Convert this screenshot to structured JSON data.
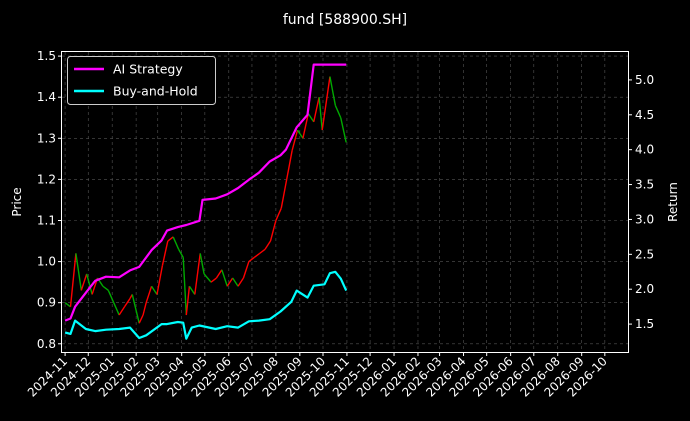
{
  "chart_data": {
    "type": "line",
    "title": "fund [588900.SH]",
    "ylabel_left": "Price",
    "ylabel_right": "Return",
    "ylim_left": [
      0.78,
      1.51
    ],
    "ylim_right": [
      1.1,
      5.4
    ],
    "yticks_left": [
      "0.8",
      "0.9",
      "1.0",
      "1.1",
      "1.2",
      "1.3",
      "1.4",
      "1.5"
    ],
    "yticks_right": [
      "1.5",
      "2.0",
      "2.5",
      "3.0",
      "3.5",
      "4.0",
      "4.5",
      "5.0"
    ],
    "x_ticks": [
      "2024-11",
      "2024-12",
      "2025-01",
      "2025-02",
      "2025-03",
      "2025-04",
      "2025-05",
      "2025-06",
      "2025-07",
      "2025-08",
      "2025-09",
      "2025-10",
      "2025-11",
      "2025-12",
      "2026-01",
      "2026-02",
      "2026-03",
      "2026-04",
      "2026-05",
      "2026-06",
      "2026-07",
      "2026-08",
      "2026-09",
      "2026-10"
    ],
    "xlim": [
      "2024-10-28",
      "2026-10-31"
    ],
    "grid": true,
    "legend_position": "top-left",
    "legend": [
      "AI Strategy",
      "Buy-and-Hold"
    ],
    "colors": {
      "background": "#000000",
      "ai": "#ff00ff",
      "bh": "#00ffff",
      "up": "#ff0000",
      "down": "#00aa00",
      "grid": "#555555"
    },
    "price_series": [
      [
        "2024-11-01",
        0.9
      ],
      [
        "2024-11-08",
        0.89
      ],
      [
        "2024-11-15",
        1.02
      ],
      [
        "2024-11-22",
        0.93
      ],
      [
        "2024-11-29",
        0.97
      ],
      [
        "2024-12-06",
        0.92
      ],
      [
        "2024-12-13",
        0.96
      ],
      [
        "2024-12-20",
        0.94
      ],
      [
        "2024-12-27",
        0.93
      ],
      [
        "2025-01-03",
        0.9
      ],
      [
        "2025-01-10",
        0.87
      ],
      [
        "2025-01-17",
        0.89
      ],
      [
        "2025-01-24",
        0.91
      ],
      [
        "2025-01-27",
        0.92
      ],
      [
        "2025-02-05",
        0.85
      ],
      [
        "2025-02-10",
        0.87
      ],
      [
        "2025-02-14",
        0.9
      ],
      [
        "2025-02-21",
        0.94
      ],
      [
        "2025-02-28",
        0.92
      ],
      [
        "2025-03-07",
        0.99
      ],
      [
        "2025-03-14",
        1.05
      ],
      [
        "2025-03-21",
        1.06
      ],
      [
        "2025-03-28",
        1.03
      ],
      [
        "2025-04-03",
        1.01
      ],
      [
        "2025-04-07",
        0.87
      ],
      [
        "2025-04-11",
        0.94
      ],
      [
        "2025-04-18",
        0.92
      ],
      [
        "2025-04-25",
        1.02
      ],
      [
        "2025-04-30",
        0.97
      ],
      [
        "2025-05-09",
        0.95
      ],
      [
        "2025-05-16",
        0.96
      ],
      [
        "2025-05-23",
        0.98
      ],
      [
        "2025-05-30",
        0.94
      ],
      [
        "2025-06-06",
        0.96
      ],
      [
        "2025-06-13",
        0.94
      ],
      [
        "2025-06-20",
        0.96
      ],
      [
        "2025-06-27",
        1.0
      ],
      [
        "2025-07-04",
        1.01
      ],
      [
        "2025-07-11",
        1.02
      ],
      [
        "2025-07-18",
        1.03
      ],
      [
        "2025-07-25",
        1.05
      ],
      [
        "2025-08-01",
        1.1
      ],
      [
        "2025-08-08",
        1.13
      ],
      [
        "2025-08-15",
        1.2
      ],
      [
        "2025-08-22",
        1.27
      ],
      [
        "2025-08-29",
        1.32
      ],
      [
        "2025-09-05",
        1.3
      ],
      [
        "2025-09-12",
        1.36
      ],
      [
        "2025-09-19",
        1.34
      ],
      [
        "2025-09-26",
        1.4
      ],
      [
        "2025-09-30",
        1.32
      ],
      [
        "2025-10-10",
        1.45
      ],
      [
        "2025-10-17",
        1.38
      ],
      [
        "2025-10-24",
        1.35
      ],
      [
        "2025-10-31",
        1.29
      ]
    ],
    "series": [
      {
        "name": "AI Strategy",
        "axis": "right",
        "points": [
          [
            "2024-11-01",
            1.55
          ],
          [
            "2024-11-08",
            1.58
          ],
          [
            "2024-11-14",
            1.75
          ],
          [
            "2024-11-28",
            1.95
          ],
          [
            "2024-12-10",
            2.12
          ],
          [
            "2024-12-24",
            2.18
          ],
          [
            "2025-01-10",
            2.17
          ],
          [
            "2025-01-24",
            2.27
          ],
          [
            "2025-02-05",
            2.32
          ],
          [
            "2025-02-21",
            2.56
          ],
          [
            "2025-03-06",
            2.7
          ],
          [
            "2025-03-13",
            2.84
          ],
          [
            "2025-03-27",
            2.89
          ],
          [
            "2025-04-07",
            2.92
          ],
          [
            "2025-04-24",
            2.98
          ],
          [
            "2025-04-28",
            3.28
          ],
          [
            "2025-05-15",
            3.3
          ],
          [
            "2025-05-30",
            3.36
          ],
          [
            "2025-06-13",
            3.45
          ],
          [
            "2025-06-27",
            3.57
          ],
          [
            "2025-07-10",
            3.67
          ],
          [
            "2025-07-24",
            3.83
          ],
          [
            "2025-08-07",
            3.92
          ],
          [
            "2025-08-14",
            4.0
          ],
          [
            "2025-08-28",
            4.32
          ],
          [
            "2025-09-11",
            4.5
          ],
          [
            "2025-09-19",
            5.22
          ],
          [
            "2025-10-10",
            5.22
          ],
          [
            "2025-10-31",
            5.22
          ]
        ]
      },
      {
        "name": "Buy-and-Hold",
        "axis": "right",
        "points": [
          [
            "2024-11-01",
            1.38
          ],
          [
            "2024-11-08",
            1.36
          ],
          [
            "2024-11-14",
            1.55
          ],
          [
            "2024-11-28",
            1.43
          ],
          [
            "2024-12-10",
            1.4
          ],
          [
            "2024-12-24",
            1.42
          ],
          [
            "2025-01-10",
            1.43
          ],
          [
            "2025-01-24",
            1.45
          ],
          [
            "2025-02-05",
            1.3
          ],
          [
            "2025-02-14",
            1.34
          ],
          [
            "2025-03-06",
            1.5
          ],
          [
            "2025-03-13",
            1.5
          ],
          [
            "2025-03-27",
            1.53
          ],
          [
            "2025-04-03",
            1.52
          ],
          [
            "2025-04-07",
            1.29
          ],
          [
            "2025-04-14",
            1.45
          ],
          [
            "2025-04-24",
            1.48
          ],
          [
            "2025-05-15",
            1.43
          ],
          [
            "2025-05-30",
            1.47
          ],
          [
            "2025-06-13",
            1.45
          ],
          [
            "2025-06-27",
            1.54
          ],
          [
            "2025-07-10",
            1.55
          ],
          [
            "2025-07-24",
            1.57
          ],
          [
            "2025-08-07",
            1.68
          ],
          [
            "2025-08-21",
            1.82
          ],
          [
            "2025-08-28",
            1.98
          ],
          [
            "2025-09-11",
            1.88
          ],
          [
            "2025-09-19",
            2.05
          ],
          [
            "2025-10-03",
            2.07
          ],
          [
            "2025-10-10",
            2.23
          ],
          [
            "2025-10-17",
            2.25
          ],
          [
            "2025-10-24",
            2.15
          ],
          [
            "2025-10-31",
            1.98
          ]
        ]
      }
    ]
  }
}
